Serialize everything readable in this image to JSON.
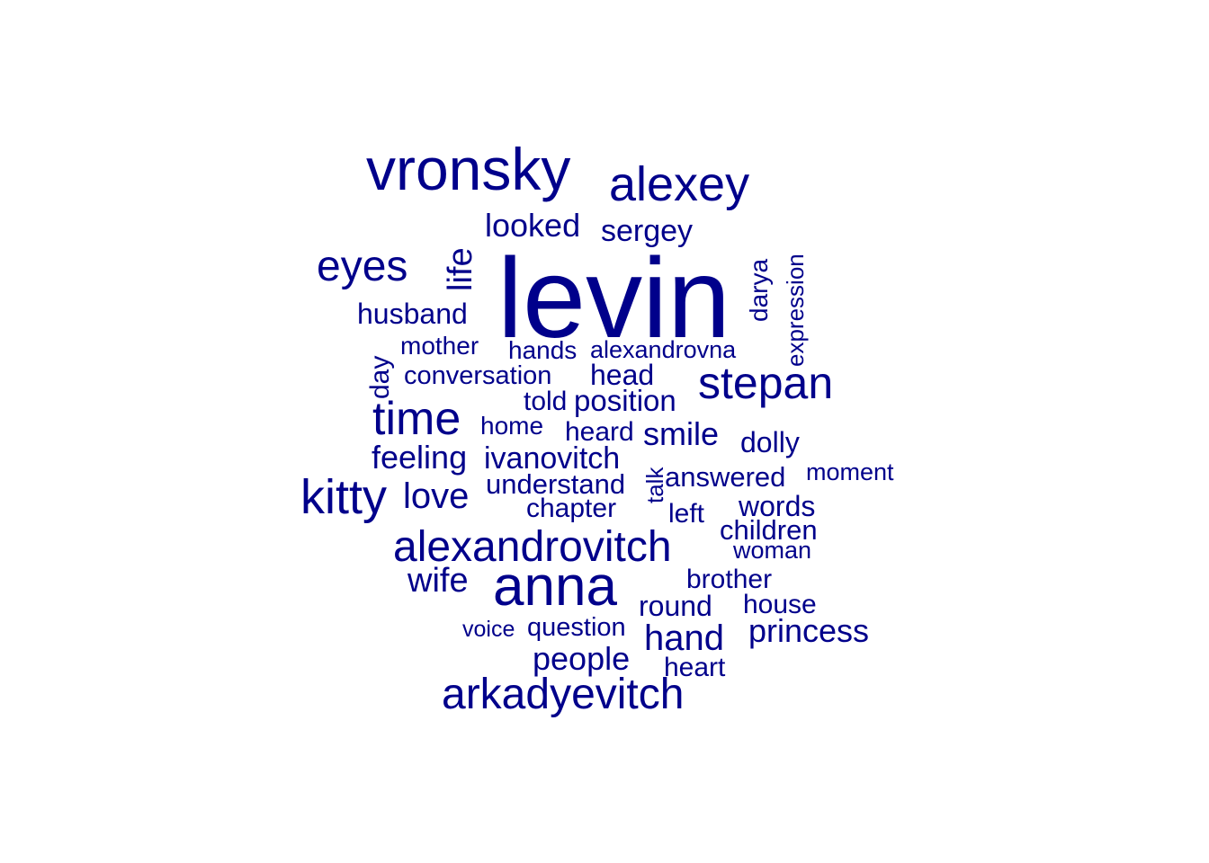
{
  "color": "#00008b",
  "background": "#ffffff",
  "words": [
    "levin",
    "vronsky",
    "alexey",
    "anna",
    "arkadyevitch",
    "alexandrovitch",
    "stepan",
    "time",
    "kitty",
    "eyes",
    "looked",
    "sergey",
    "life",
    "husband",
    "love",
    "mother",
    "hands",
    "alexandrovna",
    "darya",
    "expression",
    "day",
    "conversation",
    "head",
    "told",
    "position",
    "home",
    "heard",
    "smile",
    "dolly",
    "feeling",
    "ivanovitch",
    "talk",
    "answered",
    "moment",
    "understand",
    "chapter",
    "left",
    "words",
    "children",
    "woman",
    "wife",
    "brother",
    "round",
    "house",
    "voice",
    "question",
    "princess",
    "hand",
    "people",
    "heart"
  ]
}
